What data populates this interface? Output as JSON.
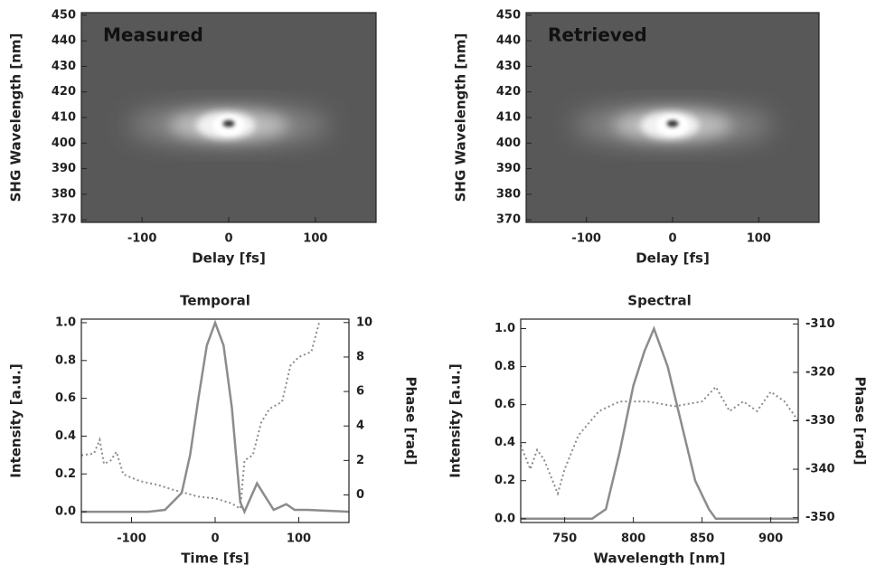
{
  "chart_data": [
    {
      "type": "heatmap",
      "annotation": "Measured",
      "xlabel": "Delay [fs]",
      "ylabel": "SHG Wavelength [nm]",
      "xlim": [
        -170,
        170
      ],
      "xticks": [
        -100,
        0,
        100
      ],
      "ylim": [
        369,
        451
      ],
      "yticks": [
        370,
        380,
        390,
        400,
        410,
        420,
        430,
        440,
        450
      ]
    },
    {
      "type": "heatmap",
      "annotation": "Retrieved",
      "xlabel": "Delay [fs]",
      "ylabel": "SHG Wavelength [nm]",
      "xlim": [
        -170,
        170
      ],
      "xticks": [
        -100,
        0,
        100
      ],
      "ylim": [
        369,
        451
      ],
      "yticks": [
        370,
        380,
        390,
        400,
        410,
        420,
        430,
        440,
        450
      ]
    },
    {
      "type": "line",
      "title": "Temporal",
      "xlabel": "Time [fs]",
      "ylabel": "Intensity [a.u.]",
      "y2label": "Phase [rad]",
      "xlim": [
        -160,
        160
      ],
      "xticks": [
        -100,
        0,
        100
      ],
      "ylim": [
        -0.057,
        1.019
      ],
      "yticks": [
        {
          "value": 0,
          "label": "0.0"
        },
        0.2,
        0.4,
        0.6,
        0.8,
        {
          "value": 1,
          "label": "1.0"
        }
      ],
      "y2lim": [
        -1.6,
        10.2
      ],
      "y2ticks": [
        0,
        2,
        4,
        6,
        8,
        10
      ],
      "series": [
        {
          "color": "#8c8c8c",
          "style": "solid",
          "x": [
            -160,
            -80,
            -60,
            -40,
            -30,
            -20,
            -10,
            0,
            10,
            20,
            25,
            30,
            35,
            40,
            50,
            60,
            70,
            85,
            95,
            110,
            160
          ],
          "values": [
            0,
            0,
            0.01,
            0.1,
            0.3,
            0.6,
            0.88,
            1.0,
            0.88,
            0.55,
            0.3,
            0.05,
            0,
            0.05,
            0.15,
            0.08,
            0.01,
            0.04,
            0.01,
            0.01,
            0
          ]
        },
        {
          "color": "#8c8c8c",
          "style": "dotted",
          "axis": "y2",
          "x": [
            -160,
            -145,
            -138,
            -133,
            -125,
            -118,
            -110,
            -90,
            -70,
            -50,
            -20,
            0,
            20,
            30,
            35,
            45,
            55,
            65,
            80,
            90,
            100,
            115,
            125
          ],
          "values": [
            2.3,
            2.4,
            3.2,
            1.8,
            2.0,
            2.5,
            1.2,
            0.8,
            0.6,
            0.3,
            -0.1,
            -0.2,
            -0.5,
            -0.8,
            2.0,
            2.3,
            4.2,
            5.0,
            5.4,
            7.5,
            8.0,
            8.3,
            10.1
          ]
        }
      ]
    },
    {
      "type": "line",
      "title": "Spectral",
      "xlabel": "Wavelength [nm]",
      "ylabel": "Intensity [a.u.]",
      "y2label": "Phase [rad]",
      "xlim": [
        718,
        920
      ],
      "xticks": [
        750,
        800,
        850,
        900
      ],
      "ylim": [
        -0.02,
        1.05
      ],
      "yticks": [
        {
          "value": 0,
          "label": "0.0"
        },
        0.2,
        0.4,
        0.6,
        0.8,
        {
          "value": 1,
          "label": "1.0"
        }
      ],
      "y2lim": [
        -351,
        -309
      ],
      "y2ticks": [
        -350,
        -340,
        -330,
        -320,
        -310
      ],
      "series": [
        {
          "color": "#8c8c8c",
          "style": "solid",
          "x": [
            718,
            770,
            780,
            790,
            800,
            808,
            815,
            825,
            835,
            845,
            855,
            860,
            920
          ],
          "values": [
            0,
            0,
            0.05,
            0.35,
            0.7,
            0.88,
            1.0,
            0.8,
            0.5,
            0.2,
            0.05,
            0,
            0
          ]
        },
        {
          "color": "#8c8c8c",
          "style": "dotted",
          "axis": "y2",
          "x": [
            718,
            725,
            730,
            735,
            745,
            750,
            760,
            775,
            790,
            810,
            830,
            850,
            860,
            870,
            880,
            890,
            900,
            910,
            920
          ],
          "values": [
            -335,
            -340,
            -336,
            -338,
            -345,
            -340,
            -333,
            -328,
            -326,
            -326,
            -327,
            -326,
            -323,
            -328,
            -326,
            -328,
            -324,
            -326,
            -330
          ]
        }
      ]
    }
  ]
}
